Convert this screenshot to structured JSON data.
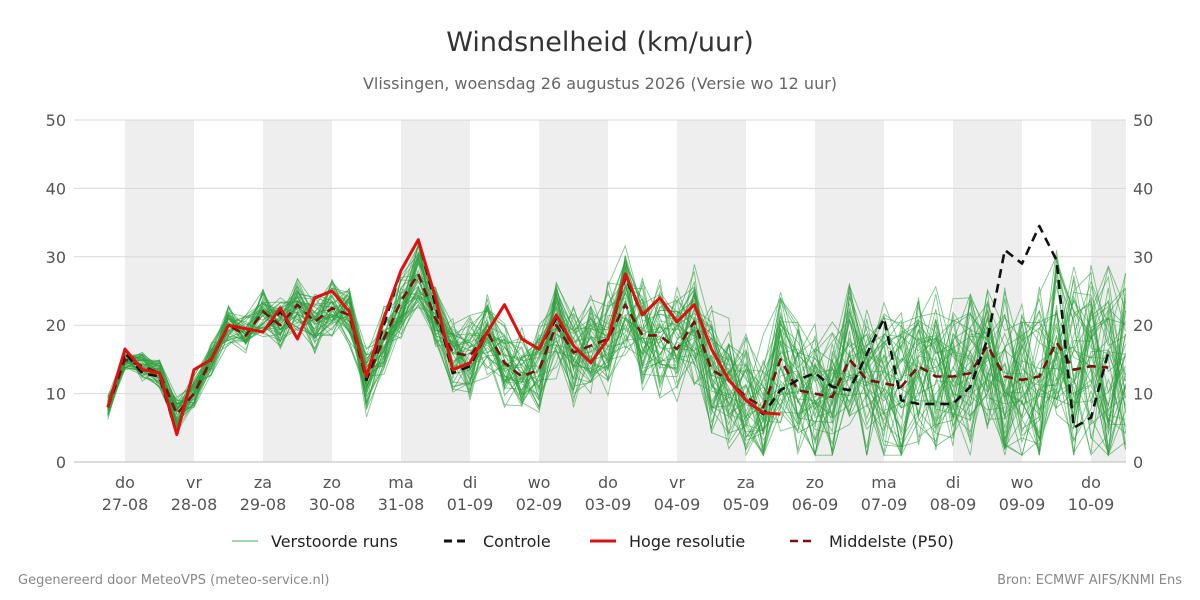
{
  "chart_data": {
    "type": "line",
    "title": "Windsnelheid (km/uur)",
    "subtitle": "Vlissingen, woensdag 26 augustus 2026 (Versie wo 12 uur)",
    "ylim": [
      0,
      50
    ],
    "yticks": [
      0,
      10,
      20,
      30,
      40,
      50
    ],
    "grid": true,
    "day_ticks": [
      {
        "x": 0.0,
        "day": "do",
        "date": "27-08"
      },
      {
        "x": 1.0,
        "day": "vr",
        "date": "28-08"
      },
      {
        "x": 2.0,
        "day": "za",
        "date": "29-08"
      },
      {
        "x": 3.0,
        "day": "zo",
        "date": "30-08"
      },
      {
        "x": 4.0,
        "day": "ma",
        "date": "31-08"
      },
      {
        "x": 5.0,
        "day": "di",
        "date": "01-09"
      },
      {
        "x": 6.0,
        "day": "wo",
        "date": "02-09"
      },
      {
        "x": 7.0,
        "day": "do",
        "date": "03-09"
      },
      {
        "x": 8.0,
        "day": "vr",
        "date": "04-09"
      },
      {
        "x": 9.0,
        "day": "za",
        "date": "05-09"
      },
      {
        "x": 10.0,
        "day": "zo",
        "date": "06-09"
      },
      {
        "x": 11.0,
        "day": "ma",
        "date": "07-09"
      },
      {
        "x": 12.0,
        "day": "di",
        "date": "08-09"
      },
      {
        "x": 13.0,
        "day": "wo",
        "date": "09-09"
      },
      {
        "x": 14.0,
        "day": "do",
        "date": "10-09"
      }
    ],
    "weekend_shading": "alternating days (grey)",
    "series": [
      {
        "name": "Controle",
        "color": "#111111",
        "style": "dashed",
        "x": [
          -0.25,
          0,
          0.25,
          0.5,
          0.75,
          1,
          1.25,
          1.5,
          1.75,
          2,
          2.25,
          2.5,
          2.75,
          3,
          3.25,
          3.5,
          3.75,
          4,
          4.25,
          4.5,
          4.75,
          5,
          5.25,
          5.5,
          5.75,
          6,
          6.25,
          6.5,
          6.75,
          7,
          7.25,
          7.5,
          7.75,
          8,
          8.25,
          8.5,
          8.75,
          9,
          9.25,
          9.5,
          9.75,
          10,
          10.25,
          10.5,
          11,
          11.25,
          11.5,
          12,
          12.25,
          12.5,
          12.75,
          13,
          13.25,
          13.5,
          13.75,
          14,
          14.25
        ],
        "y": [
          8,
          16,
          13,
          12.5,
          4,
          13.5,
          15,
          20,
          19.5,
          19,
          22,
          18,
          24,
          25,
          22,
          12,
          20,
          28,
          32.5,
          23,
          13,
          14,
          19,
          23,
          18,
          16.5,
          21,
          17,
          14.5,
          18,
          27,
          21.5,
          24,
          20.5,
          23,
          16.5,
          12,
          9,
          7,
          10.5,
          12,
          13,
          11,
          10.5,
          21,
          9,
          8.5,
          8.5,
          11,
          18,
          31,
          29,
          34.5,
          29.5,
          5,
          6.5,
          16
        ]
      },
      {
        "name": "Hoge resolutie",
        "color": "#e01010",
        "style": "solid",
        "x": [
          -0.25,
          0,
          0.25,
          0.5,
          0.75,
          1,
          1.25,
          1.5,
          1.75,
          2,
          2.25,
          2.5,
          2.75,
          3,
          3.25,
          3.5,
          3.75,
          4,
          4.25,
          4.5,
          4.75,
          5,
          5.25,
          5.5,
          5.75,
          6,
          6.25,
          6.5,
          6.75,
          7,
          7.25,
          7.5,
          7.75,
          8,
          8.25,
          8.5,
          8.75,
          9,
          9.25,
          9.5
        ],
        "y": [
          8,
          16.5,
          13.5,
          13,
          4,
          13.5,
          15,
          20,
          19.5,
          19,
          22.5,
          18,
          24,
          25,
          22,
          12.5,
          21,
          28,
          32.5,
          24,
          13.5,
          14.5,
          19,
          23,
          18,
          16.5,
          21.5,
          17,
          14.5,
          18,
          27.5,
          21.5,
          24,
          20.5,
          23,
          16.5,
          12,
          9,
          7.2,
          7
        ]
      },
      {
        "name": "Middelste (P50)",
        "color": "#7a1010",
        "style": "dashed",
        "x": [
          -0.25,
          0,
          0.25,
          0.5,
          0.75,
          1,
          1.25,
          1.5,
          1.75,
          2,
          2.25,
          2.5,
          2.75,
          3,
          3.25,
          3.5,
          3.75,
          4,
          4.25,
          4.5,
          4.75,
          5,
          5.25,
          5.5,
          5.75,
          6,
          6.25,
          6.5,
          6.75,
          7,
          7.25,
          7.5,
          7.75,
          8,
          8.25,
          8.5,
          8.75,
          9,
          9.25,
          9.5,
          9.75,
          10,
          10.25,
          10.5,
          10.75,
          11,
          11.25,
          11.5,
          11.75,
          12,
          12.25,
          12.5,
          12.75,
          13,
          13.25,
          13.5,
          13.75,
          14,
          14.25
        ],
        "y": [
          8,
          15,
          14,
          13,
          7,
          10,
          15,
          20,
          18.5,
          22,
          20,
          23,
          20.5,
          22.5,
          21.5,
          12,
          18,
          23.5,
          27.5,
          21,
          16,
          15.5,
          19,
          14.5,
          12.5,
          13.5,
          20,
          16,
          17,
          18,
          23,
          18.5,
          18.5,
          16.5,
          20.5,
          13.5,
          12,
          9.5,
          8,
          15,
          10.5,
          10,
          9.5,
          15,
          12,
          11.5,
          11,
          14,
          12.5,
          12.5,
          13,
          17,
          12.5,
          12,
          12.5,
          17.5,
          13.5,
          14,
          13.8
        ]
      }
    ],
    "legend": [
      "Verstoorde runs",
      "Controle",
      "Hoge resolutie",
      "Middelste (P50)"
    ],
    "legend_placement": "bottom",
    "ensemble_color": "#2e9e3e"
  },
  "legend": {
    "ensemble": "Verstoorde runs",
    "control": "Controle",
    "hires": "Hoge resolutie",
    "median": "Middelste (P50)"
  },
  "footer": {
    "left": "Gegenereerd door MeteoVPS (meteo-service.nl)",
    "right": "Bron: ECMWF AIFS/KNMI Ens"
  }
}
